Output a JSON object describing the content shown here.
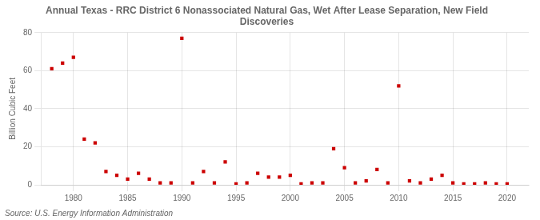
{
  "chart_data": {
    "type": "scatter",
    "title": "Annual Texas - RRC District 6 Nonassociated Natural Gas, Wet After Lease Separation, New Field Discoveries",
    "y_label": "Billion Cubic Feet",
    "source": "Source: U.S. Energy Information Administration",
    "color": "#cc0000",
    "marker": "square",
    "grid": true,
    "x": [
      1978,
      1979,
      1980,
      1981,
      1982,
      1983,
      1984,
      1985,
      1986,
      1987,
      1988,
      1989,
      1990,
      1991,
      1992,
      1993,
      1994,
      1995,
      1996,
      1997,
      1998,
      1999,
      2000,
      2001,
      2002,
      2003,
      2004,
      2005,
      2006,
      2007,
      2008,
      2009,
      2010,
      2011,
      2012,
      2013,
      2014,
      2015,
      2016,
      2017,
      2018,
      2019,
      2020
    ],
    "values": [
      61,
      64,
      67,
      24,
      22,
      7,
      5,
      3,
      6,
      3,
      1,
      1,
      77,
      1,
      7,
      1,
      12,
      0.5,
      1,
      6,
      4,
      4,
      5,
      0.5,
      1,
      1,
      19,
      9,
      1,
      2,
      8,
      1,
      52,
      2,
      1,
      3,
      5,
      1,
      0.5,
      0.5,
      1,
      0.5,
      0.5
    ],
    "xlim": [
      1977,
      2022
    ],
    "xticks": [
      1980,
      1985,
      1990,
      1995,
      2000,
      2005,
      2010,
      2015,
      2020
    ],
    "ylim": [
      0,
      80
    ],
    "yticks": [
      0,
      20,
      40,
      60,
      80
    ]
  }
}
